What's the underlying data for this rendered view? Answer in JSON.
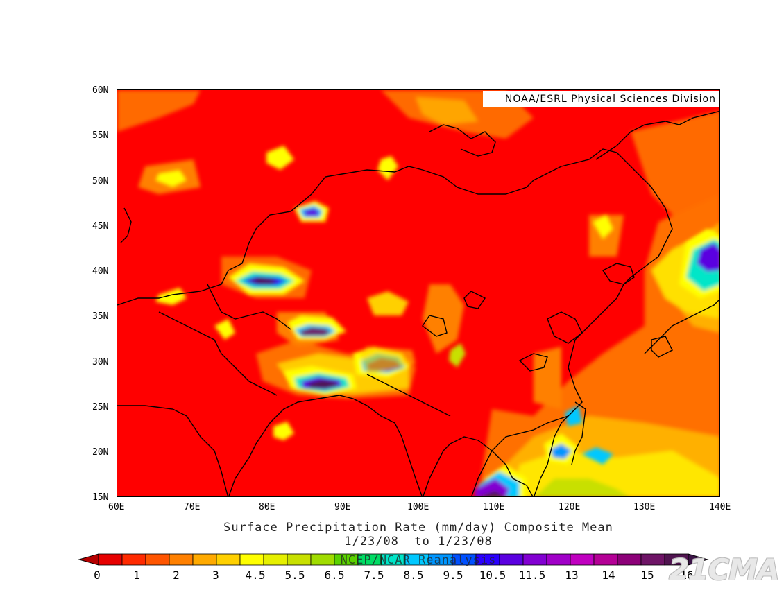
{
  "map": {
    "credit": "NOAA/ESRL Physical Sciences Division",
    "lat_labels": [
      "60N",
      "55N",
      "50N",
      "45N",
      "40N",
      "35N",
      "30N",
      "25N",
      "20N",
      "15N"
    ],
    "lon_labels": [
      "60E",
      "70E",
      "80E",
      "90E",
      "100E",
      "110E",
      "120E",
      "130E",
      "140E"
    ],
    "extent": {
      "lon": [
        60,
        140
      ],
      "lat": [
        15,
        60
      ]
    },
    "background_color": "#ff0000",
    "coastline_color": "#000000"
  },
  "title": {
    "line1": "Surface Precipitation Rate (mm/day) Composite Mean",
    "line2": "1/23/08  to 1/23/08",
    "source": "NCEP/NCAR Reanalysis"
  },
  "colorbar": {
    "labels": [
      "0",
      "1",
      "2",
      "3",
      "4.5",
      "5.5",
      "6.5",
      "7.5",
      "8.5",
      "9.5",
      "10.5",
      "11.5",
      "13",
      "14",
      "15",
      "16"
    ],
    "colors": [
      "#e60000",
      "#ff2a00",
      "#ff5500",
      "#ff8000",
      "#ffaa00",
      "#ffd000",
      "#ffff00",
      "#e6f000",
      "#c8e000",
      "#a0dc00",
      "#5ad200",
      "#00dc64",
      "#00e6c8",
      "#00c8ff",
      "#0096ff",
      "#0050ff",
      "#2a00ff",
      "#5a00e0",
      "#8200d2",
      "#a000c8",
      "#c000c0",
      "#b40096",
      "#8c0078",
      "#6e1466",
      "#501450"
    ],
    "under_color": "#b40000",
    "over_color": "#3c1446"
  },
  "watermark": "21CMA"
}
